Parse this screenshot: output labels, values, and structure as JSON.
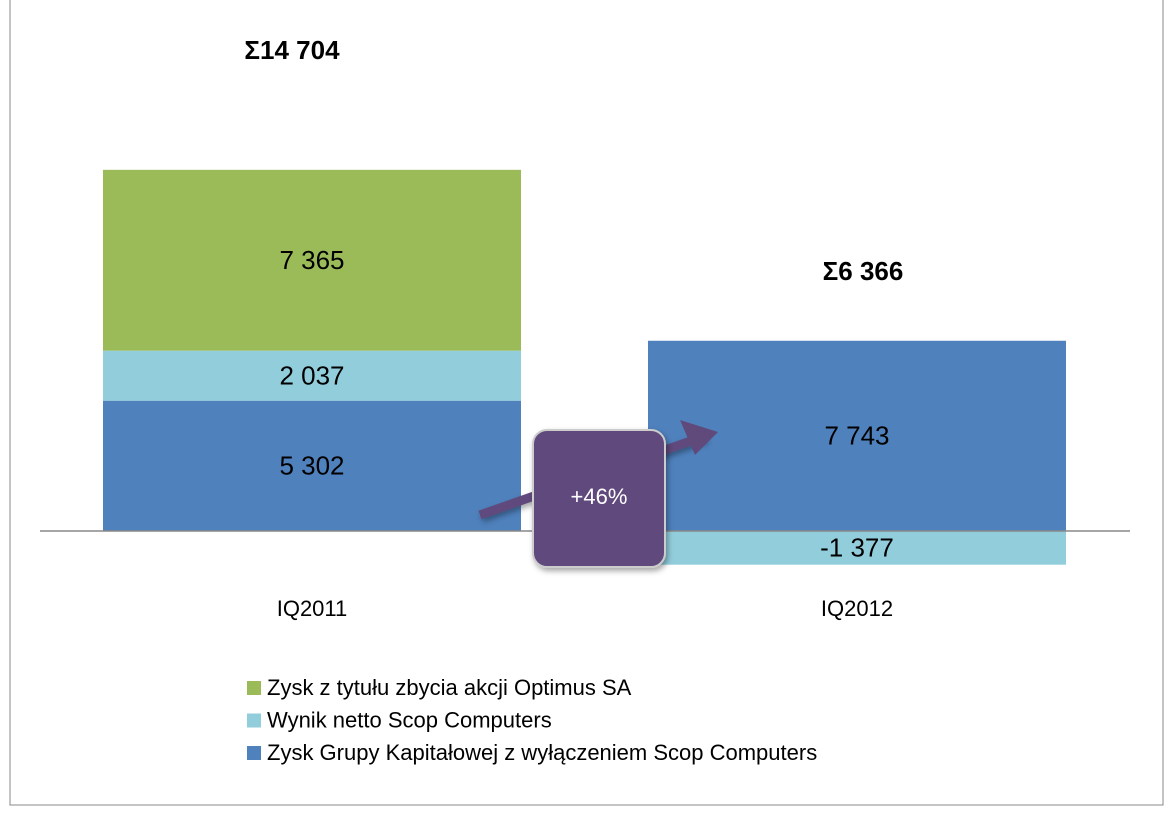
{
  "chart_data": {
    "type": "stacked_bar",
    "categories": [
      "IQ2011",
      "IQ2012"
    ],
    "series": [
      {
        "name": "Zysk z tytułu zbycia akcji Optimus SA",
        "color": "#9bbb59",
        "values": [
          7365,
          null
        ],
        "value_labels": [
          "7 365",
          null
        ]
      },
      {
        "name": "Wynik netto Scop Computers",
        "color": "#92cddc",
        "values": [
          2037,
          -1377
        ],
        "value_labels": [
          "2 037",
          "-1 377"
        ]
      },
      {
        "name": "Zysk Grupy Kapitałowej z wyłączeniem Scop Computers",
        "color": "#4f81bd",
        "values": [
          5302,
          7743
        ],
        "value_labels": [
          "5 302",
          "7 743"
        ]
      }
    ],
    "totals": [
      "Σ14 704",
      "Σ6 366"
    ],
    "annotation": "+46%",
    "ylim": [
      -2000,
      16000
    ],
    "legend": "bottom"
  }
}
